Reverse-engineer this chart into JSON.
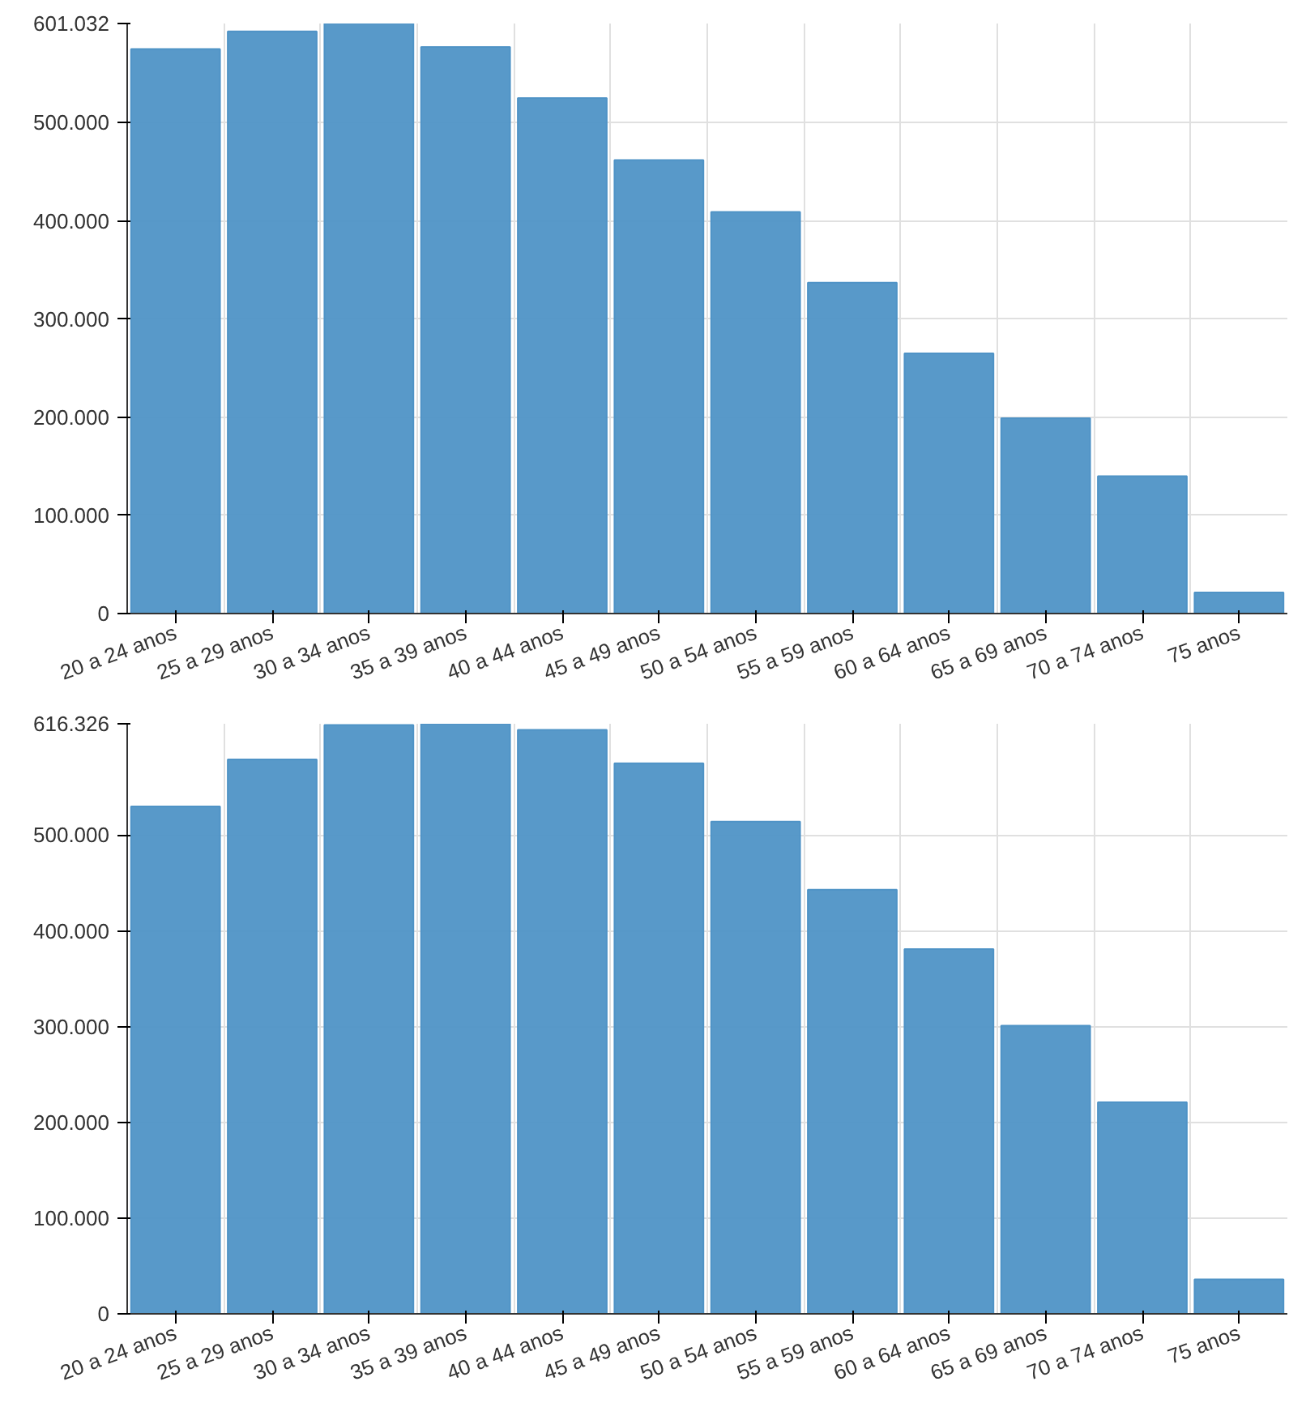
{
  "chart_data": [
    {
      "type": "bar",
      "categories": [
        "20 a 24 anos",
        "25 a 29 anos",
        "30 a 34 anos",
        "35 a 39 anos",
        "40 a 44 anos",
        "45 a 49 anos",
        "50 a 54 anos",
        "55 a 59 anos",
        "60 a 64 anos",
        "65 a 69 anos",
        "70 a 74 anos",
        "75 anos"
      ],
      "values": [
        575000,
        593000,
        601032,
        577000,
        525000,
        462000,
        409000,
        337000,
        265000,
        199000,
        140000,
        21500
      ],
      "color": "#4f93c6",
      "ylim": [
        0,
        601032
      ],
      "yticks": [
        {
          "value": 0,
          "label": "0"
        },
        {
          "value": 100000,
          "label": "100.000"
        },
        {
          "value": 200000,
          "label": "200.000"
        },
        {
          "value": 300000,
          "label": "300.000"
        },
        {
          "value": 400000,
          "label": "400.000"
        },
        {
          "value": 500000,
          "label": "500.000"
        },
        {
          "value": 601032,
          "label": "601.032"
        }
      ],
      "grid": true
    },
    {
      "type": "bar",
      "categories": [
        "20 a 24 anos",
        "25 a 29 anos",
        "30 a 34 anos",
        "35 a 39 anos",
        "40 a 44 anos",
        "45 a 49 anos",
        "50 a 54 anos",
        "55 a 59 anos",
        "60 a 64 anos",
        "65 a 69 anos",
        "70 a 74 anos",
        "75 anos"
      ],
      "values": [
        530000,
        579000,
        615000,
        616326,
        610000,
        575000,
        514000,
        443000,
        381000,
        301000,
        221000,
        36000
      ],
      "color": "#4f93c6",
      "ylim": [
        0,
        616326
      ],
      "yticks": [
        {
          "value": 0,
          "label": "0"
        },
        {
          "value": 100000,
          "label": "100.000"
        },
        {
          "value": 200000,
          "label": "200.000"
        },
        {
          "value": 300000,
          "label": "300.000"
        },
        {
          "value": 400000,
          "label": "400.000"
        },
        {
          "value": 500000,
          "label": "500.000"
        },
        {
          "value": 616326,
          "label": "616.326"
        }
      ],
      "grid": true
    }
  ]
}
